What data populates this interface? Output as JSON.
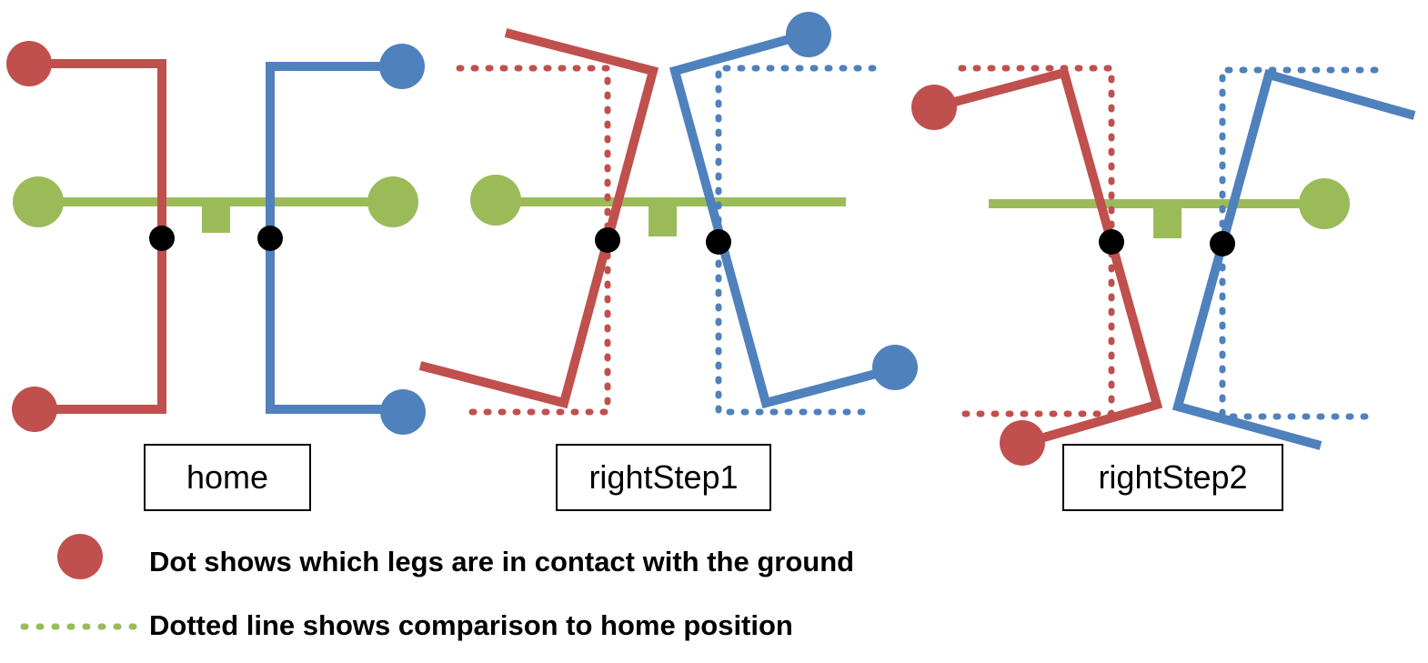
{
  "colors": {
    "red": "#c0504d",
    "blue": "#4f81bd",
    "green": "#9bbb59",
    "black": "#000000"
  },
  "captions": {
    "home": "home",
    "step1": "rightStep1",
    "step2": "rightStep2"
  },
  "legend": {
    "dot_text": "Dot shows which legs are in contact with the ground",
    "dotted_text": "Dotted line shows comparison to home position"
  }
}
